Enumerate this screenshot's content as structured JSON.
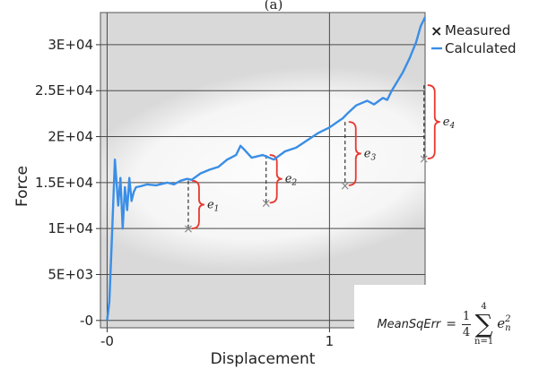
{
  "chart_data": {
    "type": "line",
    "panel_label": "(a)",
    "xlabel": "Displacement",
    "ylabel": "Force",
    "xlim": [
      -0.03,
      1.43
    ],
    "ylim": [
      -800,
      33500
    ],
    "x_ticks": [
      {
        "value": 0,
        "label": "-0"
      },
      {
        "value": 1,
        "label": "1"
      }
    ],
    "y_ticks": [
      {
        "value": 0,
        "label": "-0"
      },
      {
        "value": 5000,
        "label": "5E+03"
      },
      {
        "value": 10000,
        "label": "1E+04"
      },
      {
        "value": 15000,
        "label": "1.5E+04"
      },
      {
        "value": 20000,
        "label": "2E+04"
      },
      {
        "value": 25000,
        "label": "2.5E+04"
      },
      {
        "value": 30000,
        "label": "3E+04"
      }
    ],
    "grid": true,
    "legend_position": "top-right",
    "series": [
      {
        "name": "Calculated",
        "color": "#3a8ee6",
        "kind": "line",
        "x": [
          0.0,
          0.01,
          0.02,
          0.035,
          0.05,
          0.06,
          0.07,
          0.08,
          0.09,
          0.1,
          0.11,
          0.12,
          0.13,
          0.15,
          0.18,
          0.22,
          0.27,
          0.3,
          0.33,
          0.36,
          0.38,
          0.42,
          0.46,
          0.5,
          0.54,
          0.58,
          0.6,
          0.62,
          0.65,
          0.7,
          0.75,
          0.8,
          0.85,
          0.9,
          0.95,
          1.0,
          1.03,
          1.06,
          1.08,
          1.12,
          1.17,
          1.2,
          1.24,
          1.26,
          1.28,
          1.3,
          1.33,
          1.36,
          1.39,
          1.41,
          1.43
        ],
        "y": [
          0,
          2000,
          8000,
          17500,
          12500,
          15500,
          10000,
          14500,
          12000,
          15500,
          13000,
          14000,
          14500,
          14600,
          14800,
          14700,
          15000,
          14800,
          15200,
          15400,
          15300,
          16000,
          16400,
          16700,
          17500,
          18000,
          19000,
          18500,
          17700,
          18000,
          17500,
          18400,
          18800,
          19600,
          20400,
          21000,
          21500,
          22000,
          22500,
          23400,
          23900,
          23500,
          24200,
          24000,
          25000,
          25800,
          27000,
          28500,
          30300,
          32000,
          33000
        ]
      },
      {
        "name": "Measured",
        "color": "#8a8a8a",
        "kind": "points",
        "x": [
          0.365,
          0.715,
          1.07,
          1.425
        ],
        "y": [
          10000,
          12800,
          14700,
          17600
        ],
        "calc_y": [
          15200,
          18000,
          21600,
          25600
        ]
      }
    ],
    "annotations": {
      "error_labels": [
        "e1",
        "e2",
        "e3",
        "e4"
      ],
      "formula_lhs": "MeanSqErr",
      "formula_eq": "=",
      "formula_num": "1",
      "formula_den": "4",
      "sum_upper": "4",
      "sum_lower": "n=1",
      "term_base": "e",
      "term_sup": "2",
      "term_sub": "n"
    }
  }
}
